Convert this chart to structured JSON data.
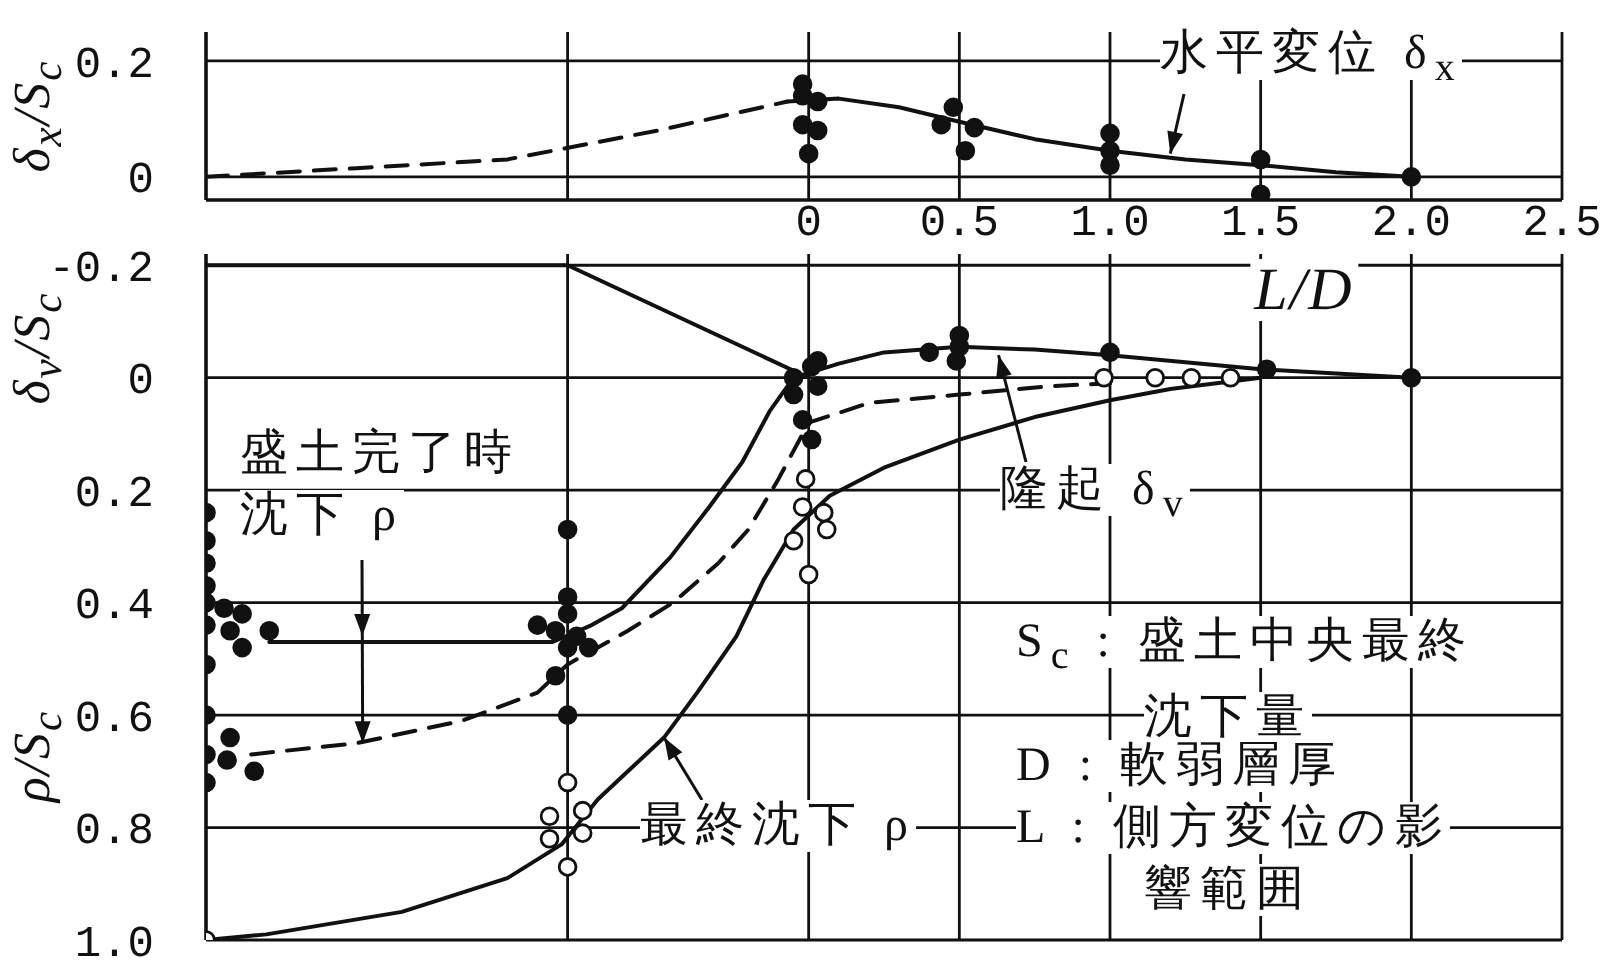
{
  "chart_data": [
    {
      "type": "line",
      "xlabel": "L/D",
      "ylabel": "δ$_{x}$/S$_{c}$",
      "annotations": [
        {
          "text": "水平変位 δ$_{x}$",
          "x": 1.2,
          "y": 0.04
        }
      ],
      "xlim": [
        -2,
        2.5
      ],
      "xticks": [
        {
          "value": -0.8,
          "label": null
        },
        0,
        0.5,
        {
          "value": 1,
          "label": "1.0"
        },
        1.5,
        {
          "value": 2,
          "label": "2.0"
        },
        2.5
      ],
      "ylim": [
        -0.04,
        0.25
      ],
      "yticks": [
        0,
        0.2
      ],
      "grid": true,
      "series": [
        {
          "color": "#111111",
          "line_style": "dashed",
          "marker": "none",
          "x": [
            -2,
            -1.5,
            -1.0,
            -0.5,
            -0.07
          ],
          "values": [
            0,
            0.015,
            0.03,
            0.08,
            0.13
          ]
        },
        {
          "color": "#111111",
          "line_style": "solid",
          "marker": "none",
          "x": [
            -0.07,
            0.1,
            0.3,
            0.5,
            0.75,
            1.0,
            1.25,
            1.5,
            1.75,
            2.0
          ],
          "values": [
            0.13,
            0.135,
            0.12,
            0.095,
            0.065,
            0.045,
            0.03,
            0.02,
            0.008,
            0
          ]
        },
        {
          "type": "scatter",
          "color": "#111111",
          "marker": "circle",
          "x": [
            -0.02,
            -0.02,
            0.03,
            -0.02,
            0.03,
            0,
            0.48,
            0.44,
            0.55,
            0.52,
            1.0,
            1.0,
            1.0,
            1.5,
            1.5,
            2.0
          ],
          "values": [
            0.16,
            0.14,
            0.13,
            0.09,
            0.08,
            0.04,
            0.12,
            0.09,
            0.085,
            0.045,
            0.075,
            0.045,
            0.02,
            0.03,
            -0.03,
            0
          ]
        }
      ]
    },
    {
      "type": "line",
      "ylabel": "δ$_{v}$/S$_{c}$",
      "annotations": [
        "ρ/S$_{c}$",
        {
          "text": "盛土完了時沈下 ρ",
          "x": -1.48,
          "y": 0.65
        },
        {
          "text": "隆起 δ$_{v}$",
          "x": 0.63,
          "y": -0.04
        },
        {
          "text": "最終沈下 ρ",
          "x": -0.48,
          "y": 0.64
        },
        "S$_{c}$ : 盛土中央最終沈下量",
        "D : 軟弱層厚",
        "L : 側方変位の影響範囲"
      ],
      "xlim": [
        -2,
        2.5
      ],
      "xticks": [
        -0.8,
        0,
        0.5,
        1,
        1.5,
        2,
        2.5
      ],
      "ylim": [
        1.0,
        -0.22
      ],
      "yticks": [
        -0.2,
        0,
        0.2,
        0.4,
        0.6,
        0.8,
        {
          "value": 1,
          "label": "1.0"
        }
      ],
      "grid": true,
      "tick_labels": "y",
      "series": [
        {
          "color": "#111111",
          "line_style": "solid",
          "marker": "none",
          "x": [
            -2,
            -0.8,
            0
          ],
          "values": [
            -0.2,
            -0.2,
            0
          ]
        },
        {
          "color": "#111111",
          "line_style": "solid",
          "marker": "none",
          "x": [
            -1.79,
            -0.85,
            -0.72,
            -0.62,
            -0.46,
            -0.33,
            -0.22,
            -0.13,
            -0.05,
            0.1,
            0.25,
            0.5,
            0.75,
            1.0,
            1.5,
            2.0
          ],
          "values": [
            0.47,
            0.47,
            0.44,
            0.41,
            0.32,
            0.23,
            0.15,
            0.06,
            0,
            -0.025,
            -0.045,
            -0.055,
            -0.05,
            -0.04,
            -0.015,
            0
          ]
        },
        {
          "color": "#111111",
          "line_style": "dashed",
          "marker": "none",
          "x": [
            -1.85,
            -1.5,
            -1.15,
            -0.9,
            -0.8,
            -0.6,
            -0.45,
            -0.3,
            -0.2,
            -0.1,
            0,
            0.2,
            0.5,
            0.8,
            1.0
          ],
          "values": [
            0.67,
            0.65,
            0.61,
            0.56,
            0.51,
            0.45,
            0.4,
            0.33,
            0.27,
            0.18,
            0.08,
            0.045,
            0.03,
            0.015,
            0.01
          ]
        },
        {
          "color": "#111111",
          "line_style": "solid",
          "marker": "none",
          "x": [
            -2,
            -1.8,
            -1.35,
            -1.0,
            -0.82,
            -0.7,
            -0.6,
            -0.48,
            -0.37,
            -0.24,
            -0.15,
            -0.05,
            0.07,
            0.25,
            0.5,
            0.75,
            1.0,
            1.2,
            1.5
          ],
          "values": [
            1.0,
            0.99,
            0.95,
            0.89,
            0.83,
            0.75,
            0.7,
            0.64,
            0.56,
            0.46,
            0.36,
            0.27,
            0.21,
            0.16,
            0.11,
            0.07,
            0.04,
            0.02,
            0
          ]
        },
        {
          "type": "scatter",
          "color": "#111111",
          "marker": "circle",
          "x": [
            -2,
            -2,
            -2,
            -2,
            -2,
            -1.94,
            -1.88,
            -2,
            -1.92,
            -1.88,
            -2,
            -1.79,
            -2,
            -1.92,
            -2,
            -1.93,
            -1.84,
            -2,
            -0.8,
            -0.8,
            -0.8,
            -0.9,
            -0.84,
            -0.77,
            -0.8,
            -0.73,
            -0.84,
            -0.8,
            -0.05,
            0.01,
            0.03,
            -0.05,
            -0.02,
            0.01,
            0.03,
            0.5,
            0.5,
            0.49,
            0.4,
            1.0,
            1.52,
            2.0
          ],
          "values": [
            0.24,
            0.29,
            0.33,
            0.37,
            0.4,
            0.41,
            0.42,
            0.44,
            0.45,
            0.48,
            0.51,
            0.45,
            0.6,
            0.64,
            0.67,
            0.68,
            0.7,
            0.72,
            0.27,
            0.39,
            0.42,
            0.44,
            0.45,
            0.46,
            0.48,
            0.48,
            0.53,
            0.6,
            0,
            -0.02,
            0.015,
            0.03,
            0.075,
            0.11,
            -0.03,
            -0.075,
            -0.055,
            -0.03,
            -0.045,
            -0.045,
            -0.015,
            0
          ]
        },
        {
          "type": "scatter",
          "color": "#ffffff",
          "marker": "circle",
          "x": [
            -2,
            -0.8,
            -0.86,
            -0.75,
            -0.86,
            -0.75,
            -0.8,
            -0.01,
            -0.02,
            0.05,
            0.06,
            -0.05,
            0,
            0.98,
            1.15,
            1.27,
            1.4
          ],
          "values": [
            1.0,
            0.72,
            0.78,
            0.77,
            0.82,
            0.81,
            0.87,
            0.18,
            0.23,
            0.24,
            0.27,
            0.29,
            0.35,
            0,
            0,
            0,
            0
          ]
        }
      ]
    }
  ]
}
